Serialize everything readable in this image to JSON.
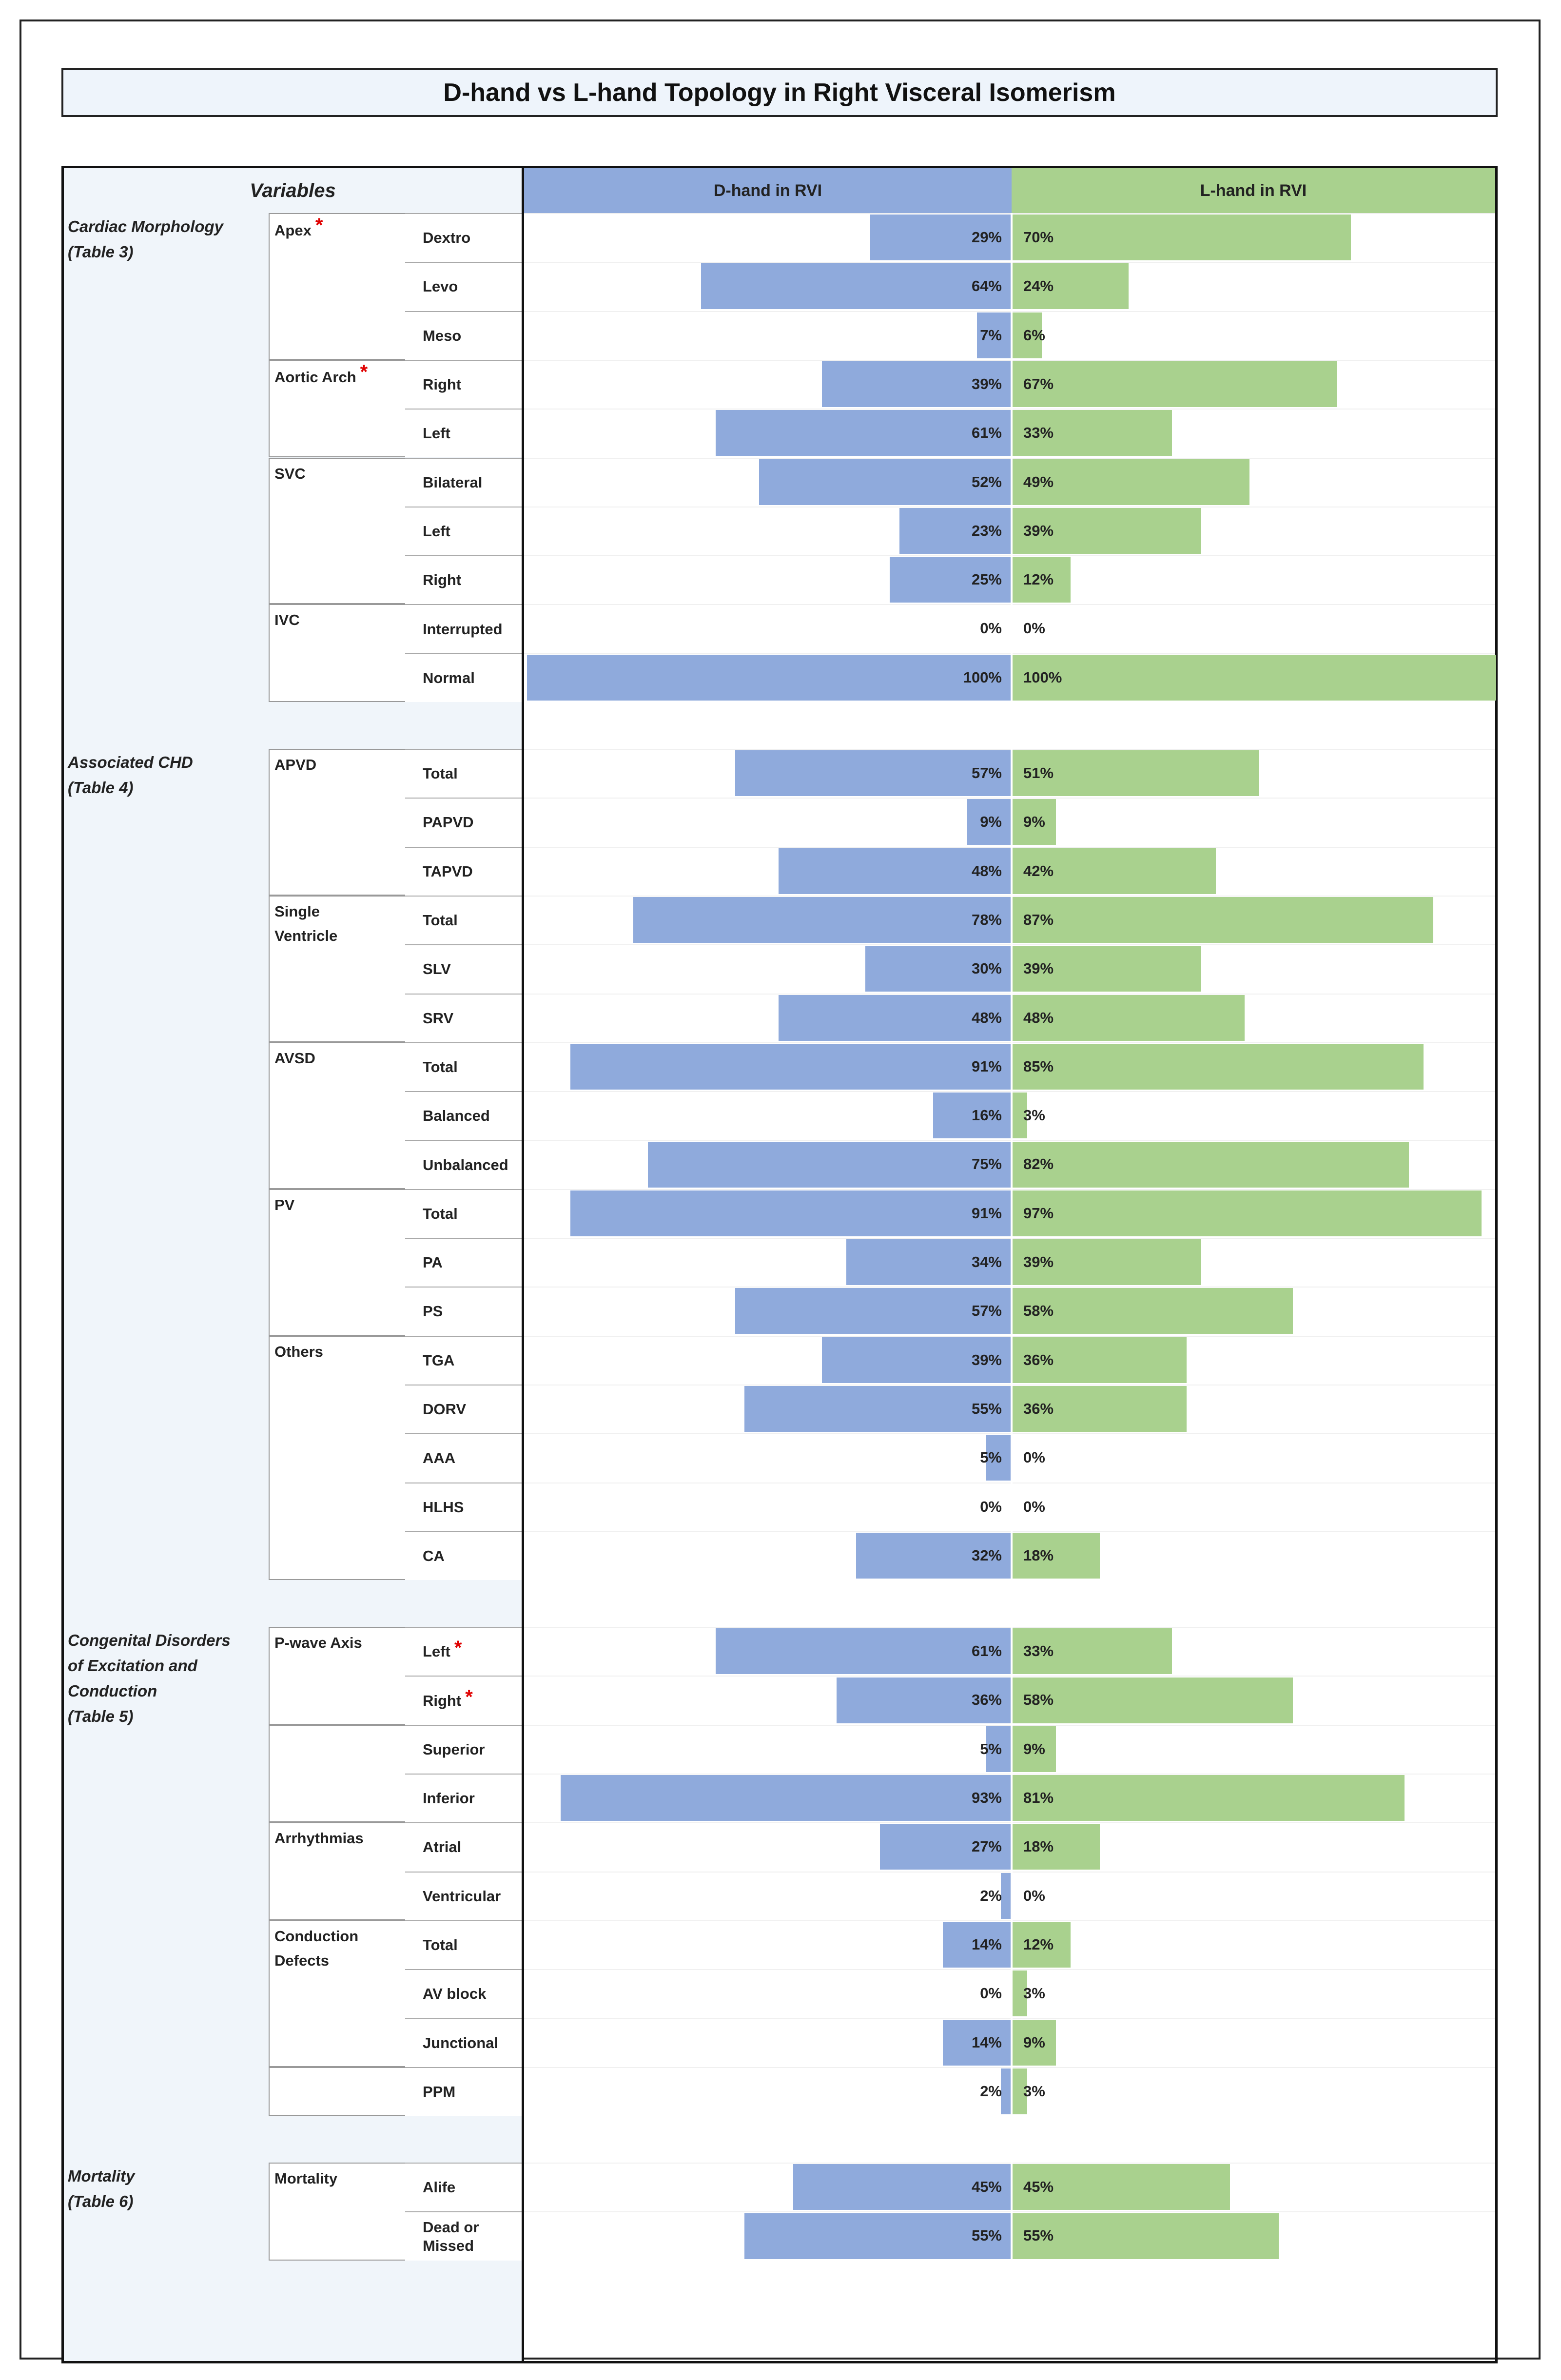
{
  "title": "D-hand vs L-hand Topology in Right Visceral Isomerism",
  "headers": {
    "variables": "Variables",
    "d": "D-hand in RVI",
    "l": "L-hand in RVI"
  },
  "chart_data": {
    "type": "bar",
    "layout": "diverging",
    "title": "D-hand vs L-hand Topology in Right Visceral Isomerism",
    "series_names": [
      "D-hand in RVI",
      "L-hand in RVI"
    ],
    "colors": {
      "d": "#8faadc",
      "l": "#a9d18e"
    },
    "sections": [
      {
        "label": "Cardiac Morphology\n(Table 3)",
        "groups": [
          {
            "label": "Apex",
            "star": true,
            "items": [
              {
                "label": "Dextro",
                "d": 29,
                "l": 70
              },
              {
                "label": "Levo",
                "d": 64,
                "l": 24
              },
              {
                "label": "Meso",
                "d": 7,
                "l": 6
              }
            ]
          },
          {
            "label": "Aortic Arch",
            "star": true,
            "items": [
              {
                "label": "Right",
                "d": 39,
                "l": 67
              },
              {
                "label": "Left",
                "d": 61,
                "l": 33
              }
            ]
          },
          {
            "label": "SVC",
            "items": [
              {
                "label": "Bilateral",
                "d": 52,
                "l": 49
              },
              {
                "label": "Left",
                "d": 23,
                "l": 39
              },
              {
                "label": "Right",
                "d": 25,
                "l": 12
              }
            ]
          },
          {
            "label": "IVC",
            "items": [
              {
                "label": "Interrupted",
                "d": 0,
                "l": 0
              },
              {
                "label": "Normal",
                "d": 100,
                "l": 100
              }
            ]
          }
        ]
      },
      {
        "label": "Associated CHD\n(Table 4)",
        "groups": [
          {
            "label": "APVD",
            "items": [
              {
                "label": "Total",
                "d": 57,
                "l": 51
              },
              {
                "label": "PAPVD",
                "d": 9,
                "l": 9
              },
              {
                "label": "TAPVD",
                "d": 48,
                "l": 42
              }
            ]
          },
          {
            "label": "Single\nVentricle",
            "items": [
              {
                "label": "Total",
                "d": 78,
                "l": 87
              },
              {
                "label": "SLV",
                "d": 30,
                "l": 39
              },
              {
                "label": "SRV",
                "d": 48,
                "l": 48
              }
            ]
          },
          {
            "label": "AVSD",
            "items": [
              {
                "label": "Total",
                "d": 91,
                "l": 85
              },
              {
                "label": "Balanced",
                "d": 16,
                "l": 3
              },
              {
                "label": "Unbalanced",
                "d": 75,
                "l": 82
              }
            ]
          },
          {
            "label": "PV",
            "items": [
              {
                "label": "Total",
                "d": 91,
                "l": 97
              },
              {
                "label": "PA",
                "d": 34,
                "l": 39
              },
              {
                "label": "PS",
                "d": 57,
                "l": 58
              }
            ]
          },
          {
            "label": "Others",
            "items": [
              {
                "label": "TGA",
                "d": 39,
                "l": 36
              },
              {
                "label": "DORV",
                "d": 55,
                "l": 36
              },
              {
                "label": "AAA",
                "d": 5,
                "l": 0
              },
              {
                "label": "HLHS",
                "d": 0,
                "l": 0
              },
              {
                "label": "CA",
                "d": 32,
                "l": 18
              }
            ]
          }
        ]
      },
      {
        "label": "Congenital Disorders\nof Excitation and\nConduction\n(Table 5)",
        "groups": [
          {
            "label": "P-wave Axis",
            "items": [
              {
                "label": "Left",
                "star": true,
                "d": 61,
                "l": 33
              },
              {
                "label": "Right",
                "star": true,
                "d": 36,
                "l": 58
              }
            ]
          },
          {
            "label": "",
            "items": [
              {
                "label": "Superior",
                "d": 5,
                "l": 9
              },
              {
                "label": "Inferior",
                "d": 93,
                "l": 81
              }
            ]
          },
          {
            "label": "Arrhythmias",
            "items": [
              {
                "label": "Atrial",
                "d": 27,
                "l": 18
              },
              {
                "label": "Ventricular",
                "d": 2,
                "l": 0
              }
            ]
          },
          {
            "label": "Conduction\nDefects",
            "items": [
              {
                "label": "Total",
                "d": 14,
                "l": 12
              },
              {
                "label": "AV block",
                "d": 0,
                "l": 3
              },
              {
                "label": "Junctional",
                "d": 14,
                "l": 9
              }
            ]
          },
          {
            "label": "",
            "items": [
              {
                "label": "PPM",
                "d": 2,
                "l": 3
              }
            ]
          }
        ]
      },
      {
        "label": "Mortality\n(Table 6)",
        "groups": [
          {
            "label": "Mortality",
            "items": [
              {
                "label": "Alife",
                "d": 45,
                "l": 45
              },
              {
                "label": "Dead or\nMissed",
                "d": 55,
                "l": 55
              }
            ]
          }
        ]
      }
    ]
  }
}
